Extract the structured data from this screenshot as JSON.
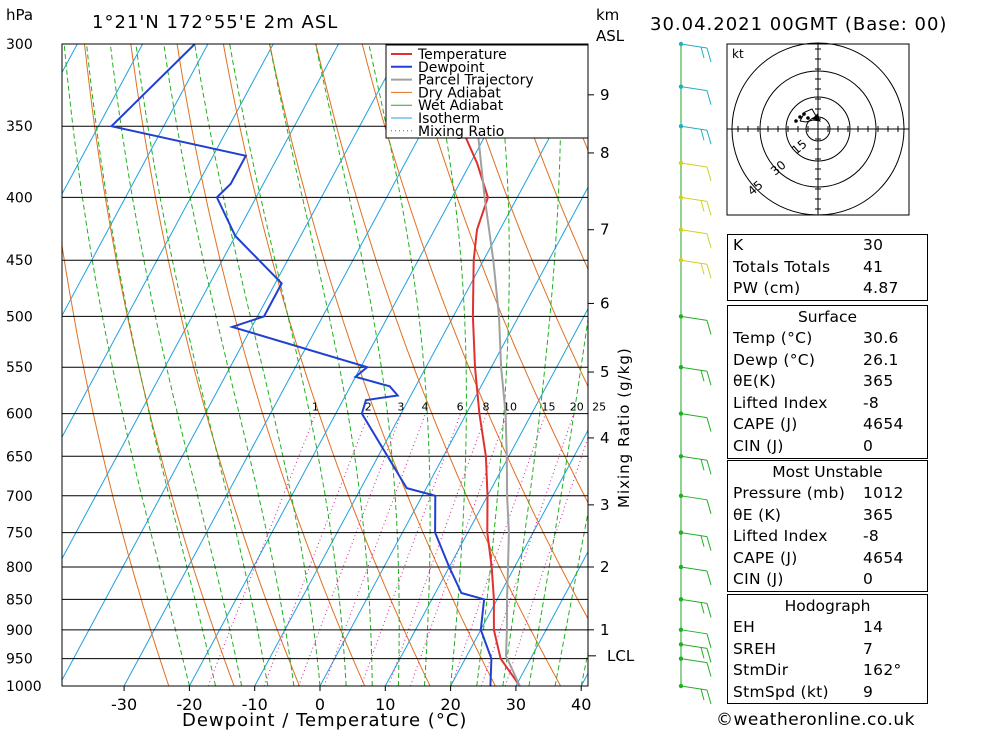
{
  "header": {
    "hpa_label": "hPa",
    "location": "1°21'N  172°55'E  2m  ASL",
    "km_label": "km",
    "asl_label": "ASL",
    "datetime": "30.04.2021  00GMT  (Base: 00)"
  },
  "chart_data": {
    "type": "line",
    "title": "1°21'N  172°55'E  2m  ASL",
    "xlabel": "Dewpoint / Temperature (°C)",
    "ylabel": "hPa",
    "x_ticks": [
      -30,
      -20,
      -10,
      0,
      10,
      20,
      30,
      40
    ],
    "pressure_levels": [
      300,
      350,
      400,
      450,
      500,
      550,
      600,
      650,
      700,
      750,
      800,
      850,
      900,
      950,
      1000
    ],
    "km_ticks": [
      {
        "km": 9,
        "p": 330
      },
      {
        "km": 8,
        "p": 368
      },
      {
        "km": 7,
        "p": 425
      },
      {
        "km": 6,
        "p": 488
      },
      {
        "km": 5,
        "p": 555
      },
      {
        "km": 4,
        "p": 628
      },
      {
        "km": 3,
        "p": 712
      },
      {
        "km": 2,
        "p": 800
      },
      {
        "km": 1,
        "p": 900
      }
    ],
    "lcl_label": "LCL",
    "lcl_pressure": 945,
    "mixing_ratio_axis_label": "Mixing Ratio (g/kg)",
    "mixing_ratios": [
      1,
      2,
      3,
      4,
      6,
      8,
      10,
      15,
      20,
      25
    ],
    "legend": [
      "Temperature",
      "Dewpoint",
      "Parcel Trajectory",
      "Dry Adiabat",
      "Wet Adiabat",
      "Isotherm",
      "Mixing Ratio"
    ],
    "colors": {
      "temperature": "#e03030",
      "dewpoint": "#2040d0",
      "parcel": "#a0a0a0",
      "dry_adiabat": "#e07020",
      "wet_adiabat": "#20b020",
      "isotherm": "#20a0e0",
      "mixing_ratio": "#d0209a"
    },
    "series": [
      {
        "name": "Temperature",
        "points": [
          [
            1000,
            30.6
          ],
          [
            950,
            25.4
          ],
          [
            900,
            22.0
          ],
          [
            850,
            19.5
          ],
          [
            800,
            16.5
          ],
          [
            750,
            13.0
          ],
          [
            700,
            10.0
          ],
          [
            650,
            6.5
          ],
          [
            600,
            2.0
          ],
          [
            550,
            -2.5
          ],
          [
            500,
            -7.0
          ],
          [
            450,
            -11.5
          ],
          [
            425,
            -13.5
          ],
          [
            400,
            -14.5
          ],
          [
            375,
            -19.0
          ],
          [
            350,
            -24.5
          ]
        ]
      },
      {
        "name": "Dewpoint",
        "points": [
          [
            1000,
            26.1
          ],
          [
            950,
            24.0
          ],
          [
            900,
            20.0
          ],
          [
            850,
            18.0
          ],
          [
            840,
            14.0
          ],
          [
            800,
            10.0
          ],
          [
            750,
            5.0
          ],
          [
            700,
            2.0
          ],
          [
            690,
            -3.0
          ],
          [
            600,
            -16.0
          ],
          [
            585,
            -16.5
          ],
          [
            580,
            -12.0
          ],
          [
            570,
            -14.0
          ],
          [
            560,
            -20.0
          ],
          [
            550,
            -19.0
          ],
          [
            510,
            -43.0
          ],
          [
            500,
            -39.0
          ],
          [
            470,
            -39.0
          ],
          [
            430,
            -50.0
          ],
          [
            400,
            -56.0
          ],
          [
            390,
            -55.0
          ],
          [
            370,
            -55.0
          ],
          [
            350,
            -78.0
          ],
          [
            300,
            -72.0
          ]
        ]
      },
      {
        "name": "Parcel Trajectory",
        "points": [
          [
            1000,
            30.6
          ],
          [
            945,
            26.0
          ],
          [
            900,
            24.0
          ],
          [
            850,
            21.5
          ],
          [
            800,
            19.0
          ],
          [
            750,
            16.3
          ],
          [
            700,
            13.0
          ],
          [
            650,
            9.7
          ],
          [
            600,
            6.0
          ],
          [
            550,
            1.5
          ],
          [
            500,
            -3.0
          ],
          [
            450,
            -8.5
          ],
          [
            400,
            -15.0
          ],
          [
            350,
            -22.0
          ]
        ]
      }
    ]
  },
  "hodograph": {
    "unit": "kt",
    "ring_labels": [
      "15",
      "30",
      "45"
    ]
  },
  "indices": {
    "general": [
      {
        "label": "K",
        "value": "30"
      },
      {
        "label": "Totals Totals",
        "value": "41"
      },
      {
        "label": "PW (cm)",
        "value": "4.87"
      }
    ],
    "surface_title": "Surface",
    "surface": [
      {
        "label": "Temp (°C)",
        "value": "30.6"
      },
      {
        "label": "Dewp (°C)",
        "value": "26.1"
      },
      {
        "label": "θE(K)",
        "value": "365"
      },
      {
        "label": "Lifted Index",
        "value": "-8"
      },
      {
        "label": "CAPE (J)",
        "value": "4654"
      },
      {
        "label": "CIN (J)",
        "value": "0"
      }
    ],
    "mu_title": "Most Unstable",
    "most_unstable": [
      {
        "label": "Pressure (mb)",
        "value": "1012"
      },
      {
        "label": "θE (K)",
        "value": "365"
      },
      {
        "label": "Lifted Index",
        "value": "-8"
      },
      {
        "label": "CAPE (J)",
        "value": "4654"
      },
      {
        "label": "CIN (J)",
        "value": "0"
      }
    ],
    "hodo_title": "Hodograph",
    "hodograph": [
      {
        "label": "EH",
        "value": "14"
      },
      {
        "label": "SREH",
        "value": "7"
      },
      {
        "label": "StmDir",
        "value": "162°"
      },
      {
        "label": "StmSpd (kt)",
        "value": "9"
      }
    ]
  },
  "footer": {
    "copyright": "©weatheronline.co.uk"
  }
}
